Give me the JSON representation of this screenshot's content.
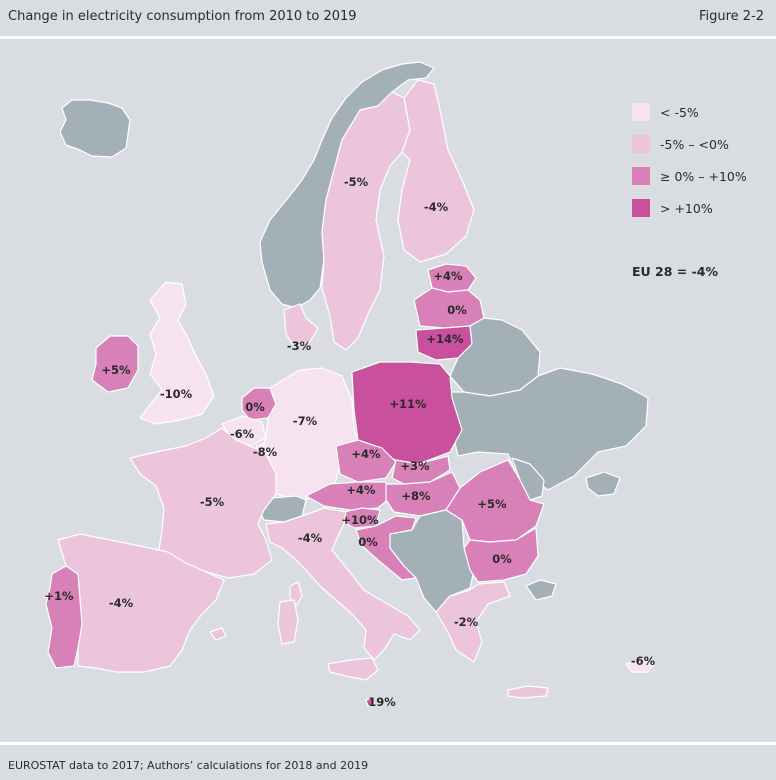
{
  "header": {
    "title": "Change in electricity consumption from 2010 to 2019",
    "figure": "Figure 2-2"
  },
  "footer": {
    "source": "EUROSTAT data to 2017; Authors’ calculations for 2018 and 2019"
  },
  "colors": {
    "background": "#d9dce1",
    "no_data": "#a4b0b8",
    "lt_minus5": "#f6e3ef",
    "minus5_to_0": "#ecc4dc",
    "zero_to_10": "#d880b8",
    "gt_10": "#c8509d",
    "border": "#ffffff"
  },
  "legend": {
    "items": [
      {
        "label": "< -5%",
        "color": "#f6e3ef"
      },
      {
        "label": "-5% – <0%",
        "color": "#ecc4dc"
      },
      {
        "label": "≥ 0% – +10%",
        "color": "#d880b8"
      },
      {
        "label": "> +10%",
        "color": "#c8509d"
      }
    ],
    "eu_total": "EU 28 = -4%"
  },
  "regions": {
    "iceland": {
      "class": "no_data"
    },
    "norway": {
      "class": "no_data"
    },
    "sweden": {
      "value": "-5%",
      "class": "minus5_to_0"
    },
    "finland": {
      "value": "-4%",
      "class": "minus5_to_0"
    },
    "estonia": {
      "value": "+4%",
      "class": "zero_to_10"
    },
    "latvia": {
      "value": "0%",
      "class": "zero_to_10"
    },
    "lithuania": {
      "value": "+14%",
      "class": "gt_10"
    },
    "denmark": {
      "value": "-3%",
      "class": "minus5_to_0"
    },
    "ireland": {
      "value": "+5%",
      "class": "zero_to_10"
    },
    "uk": {
      "value": "-10%",
      "class": "lt_minus5"
    },
    "netherlands": {
      "value": "0%",
      "class": "zero_to_10"
    },
    "belgium": {
      "value": "-6%",
      "class": "lt_minus5"
    },
    "luxembourg": {
      "value": "-8%",
      "class": "lt_minus5"
    },
    "germany": {
      "value": "-7%",
      "class": "lt_minus5"
    },
    "poland": {
      "value": "+11%",
      "class": "gt_10"
    },
    "czechia": {
      "value": "+4%",
      "class": "zero_to_10"
    },
    "slovakia": {
      "value": "+3%",
      "class": "zero_to_10"
    },
    "austria": {
      "value": "+4%",
      "class": "zero_to_10"
    },
    "hungary": {
      "value": "+8%",
      "class": "zero_to_10"
    },
    "slovenia": {
      "value": "+10%",
      "class": "zero_to_10"
    },
    "croatia": {
      "value": "0%",
      "class": "zero_to_10"
    },
    "romania": {
      "value": "+5%",
      "class": "zero_to_10"
    },
    "bulgaria": {
      "value": "0%",
      "class": "zero_to_10"
    },
    "greece": {
      "value": "-2%",
      "class": "minus5_to_0"
    },
    "cyprus": {
      "value": "-6%",
      "class": "lt_minus5"
    },
    "malta": {
      "value": "19%",
      "class": "gt_10"
    },
    "france": {
      "value": "-5%",
      "class": "minus5_to_0"
    },
    "italy": {
      "value": "-4%",
      "class": "minus5_to_0"
    },
    "spain": {
      "value": "-4%",
      "class": "minus5_to_0"
    },
    "portugal": {
      "value": "+1%",
      "class": "zero_to_10"
    },
    "switzerland": {
      "class": "no_data"
    },
    "balkans": {
      "class": "no_data"
    },
    "belarus": {
      "class": "no_data"
    },
    "ukraine": {
      "class": "no_data"
    },
    "moldova": {
      "class": "no_data"
    },
    "turkey": {
      "class": "no_data"
    },
    "crimea": {
      "class": "no_data"
    }
  }
}
